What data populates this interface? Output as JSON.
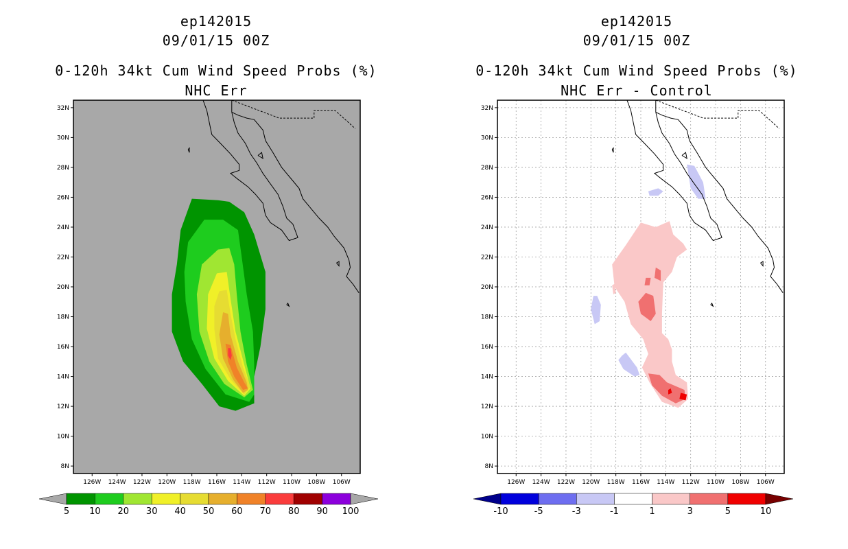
{
  "panels": [
    {
      "storm_id": "ep142015",
      "datetime": "09/01/15 00Z",
      "title": "0-120h 34kt Cum Wind Speed Probs (%)",
      "subtitle": "NHC Err"
    },
    {
      "storm_id": "ep142015",
      "datetime": "09/01/15 00Z",
      "title": "0-120h 34kt Cum Wind Speed Probs (%)",
      "subtitle": "NHC Err - Control"
    }
  ],
  "chart_data": [
    {
      "type": "heatmap",
      "title": "0-120h 34kt Cum Wind Speed Probs (%)",
      "subtitle": "NHC Err",
      "lon_range": [
        -127.5,
        -104.5
      ],
      "lat_range": [
        7.5,
        32.5
      ],
      "lon_ticks": [
        "126W",
        "124W",
        "122W",
        "120W",
        "118W",
        "116W",
        "114W",
        "112W",
        "110W",
        "108W",
        "106W"
      ],
      "lat_ticks": [
        "8N",
        "10N",
        "12N",
        "14N",
        "16N",
        "18N",
        "20N",
        "22N",
        "24N",
        "26N",
        "28N",
        "30N",
        "32N"
      ],
      "grid": false,
      "background_color": "#a8a8a8",
      "colorbar": {
        "levels": [
          "5",
          "10",
          "20",
          "30",
          "40",
          "50",
          "60",
          "70",
          "80",
          "90",
          "100"
        ],
        "colors": [
          "#009400",
          "#1ecc1e",
          "#a0e632",
          "#f0f028",
          "#e6dc32",
          "#e6af2d",
          "#f08228",
          "#fa3c3c",
          "#a00000",
          "#8c00dc"
        ],
        "extend_colors": [
          "#a8a8a8",
          "#a8a8a8"
        ]
      },
      "contours": [
        {
          "level": "5",
          "color": "#009400",
          "points": [
            [
              -118,
              25.9
            ],
            [
              -115.9,
              25.8
            ],
            [
              -115,
              25.7
            ],
            [
              -113.8,
              25
            ],
            [
              -113,
              23.5
            ],
            [
              -112.1,
              21
            ],
            [
              -112.1,
              18.5
            ],
            [
              -112.5,
              16
            ],
            [
              -113,
              14
            ],
            [
              -113,
              12.2
            ],
            [
              -114.5,
              11.7
            ],
            [
              -115.8,
              12
            ],
            [
              -117.2,
              13.5
            ],
            [
              -118.7,
              15
            ],
            [
              -119.6,
              17
            ],
            [
              -119.6,
              19.5
            ],
            [
              -119.2,
              21.5
            ],
            [
              -118.9,
              23.8
            ]
          ]
        },
        {
          "level": "10",
          "color": "#1ecc1e",
          "points": [
            [
              -117,
              24.5
            ],
            [
              -115.5,
              24.5
            ],
            [
              -114.3,
              23.8
            ],
            [
              -114,
              22
            ],
            [
              -113.6,
              19.5
            ],
            [
              -113.1,
              17
            ],
            [
              -113,
              14.8
            ],
            [
              -113,
              12.8
            ],
            [
              -113.4,
              12.3
            ],
            [
              -115.3,
              12.8
            ],
            [
              -116.9,
              14.5
            ],
            [
              -118,
              16.5
            ],
            [
              -118.5,
              19
            ],
            [
              -118.6,
              21
            ],
            [
              -118.3,
              23
            ]
          ]
        },
        {
          "level": "20",
          "color": "#a0e632",
          "points": [
            [
              -115.9,
              22.5
            ],
            [
              -115,
              22.6
            ],
            [
              -114.6,
              21.5
            ],
            [
              -114.4,
              19.5
            ],
            [
              -114.1,
              17
            ],
            [
              -113.6,
              14.8
            ],
            [
              -113.1,
              13.1
            ],
            [
              -113.8,
              12.6
            ],
            [
              -115.4,
              13.5
            ],
            [
              -116.6,
              15
            ],
            [
              -117.4,
              17
            ],
            [
              -117.6,
              19.5
            ],
            [
              -117.2,
              21.5
            ]
          ]
        },
        {
          "level": "30",
          "color": "#f0f028",
          "points": [
            [
              -116,
              20.9
            ],
            [
              -115.2,
              21
            ],
            [
              -114.9,
              19.2
            ],
            [
              -114.5,
              17
            ],
            [
              -113.8,
              14.8
            ],
            [
              -113.3,
              13.2
            ],
            [
              -113.8,
              12.7
            ],
            [
              -115.1,
              13.7
            ],
            [
              -116.2,
              15.2
            ],
            [
              -116.8,
              17.2
            ],
            [
              -116.7,
              19.5
            ]
          ]
        },
        {
          "level": "40",
          "color": "#e6dc32",
          "points": [
            [
              -115.8,
              19.7
            ],
            [
              -115.2,
              19.8
            ],
            [
              -114.9,
              18.2
            ],
            [
              -114.5,
              16.5
            ],
            [
              -113.9,
              14.6
            ],
            [
              -113.3,
              13.3
            ],
            [
              -113.8,
              12.8
            ],
            [
              -114.9,
              13.8
            ],
            [
              -115.9,
              15.2
            ],
            [
              -116.2,
              17.2
            ],
            [
              -116.2,
              18.7
            ]
          ]
        },
        {
          "level": "50",
          "color": "#e6af2d",
          "points": [
            [
              -115.5,
              18.3
            ],
            [
              -115.1,
              18.2
            ],
            [
              -114.9,
              16.8
            ],
            [
              -114.3,
              15
            ],
            [
              -113.6,
              13.6
            ],
            [
              -113.5,
              13.1
            ],
            [
              -113.9,
              12.9
            ],
            [
              -114.7,
              13.8
            ],
            [
              -115.5,
              15.2
            ],
            [
              -115.8,
              16.8
            ]
          ]
        },
        {
          "level": "60",
          "color": "#f08228",
          "points": [
            [
              -115.3,
              16.2
            ],
            [
              -114.9,
              16.1
            ],
            [
              -114.4,
              14.6
            ],
            [
              -113.8,
              13.6
            ],
            [
              -113.5,
              13.2
            ],
            [
              -113.9,
              13.1
            ],
            [
              -114.6,
              14
            ],
            [
              -115.1,
              15
            ]
          ]
        },
        {
          "level": "70",
          "color": "#fa3c3c",
          "points": [
            [
              -115.1,
              15.9
            ],
            [
              -114.9,
              15.9
            ],
            [
              -114.8,
              15.4
            ],
            [
              -114.9,
              15.1
            ],
            [
              -115.1,
              15.4
            ]
          ]
        }
      ]
    },
    {
      "type": "heatmap",
      "title": "0-120h 34kt Cum Wind Speed Probs (%)",
      "subtitle": "NHC Err - Control",
      "lon_range": [
        -127.5,
        -104.5
      ],
      "lat_range": [
        7.5,
        32.5
      ],
      "lon_ticks": [
        "126W",
        "124W",
        "122W",
        "120W",
        "118W",
        "116W",
        "114W",
        "112W",
        "110W",
        "108W",
        "106W"
      ],
      "lat_ticks": [
        "8N",
        "10N",
        "12N",
        "14N",
        "16N",
        "18N",
        "20N",
        "22N",
        "24N",
        "26N",
        "28N",
        "30N",
        "32N"
      ],
      "grid": true,
      "background_color": "#ffffff",
      "colorbar": {
        "levels": [
          "-10",
          "-5",
          "-3",
          "-1",
          "1",
          "3",
          "5",
          "10"
        ],
        "colors": [
          "#0000dc",
          "#6e6ef0",
          "#c8c8f5",
          "#ffffff",
          "#fac8c8",
          "#f07070",
          "#f00000"
        ],
        "extend_colors": [
          "#00008c",
          "#780000"
        ]
      },
      "contours": [
        {
          "level": "1",
          "color": "#fac8c8",
          "points": [
            [
              -116,
              24.3
            ],
            [
              -114.8,
              24
            ],
            [
              -113.7,
              24.4
            ],
            [
              -113.4,
              23.5
            ],
            [
              -112.6,
              22.9
            ],
            [
              -112.3,
              22.5
            ],
            [
              -113.1,
              22
            ],
            [
              -113.5,
              21
            ],
            [
              -114.2,
              20.3
            ],
            [
              -114.3,
              18.2
            ],
            [
              -114.3,
              16.9
            ],
            [
              -113.8,
              16.5
            ],
            [
              -113.5,
              15.8
            ],
            [
              -113.5,
              15
            ],
            [
              -113.2,
              14.1
            ],
            [
              -112.3,
              13.6
            ],
            [
              -112.2,
              12.5
            ],
            [
              -113,
              11.9
            ],
            [
              -114.3,
              12.3
            ],
            [
              -115.3,
              13.6
            ],
            [
              -115.9,
              14.6
            ],
            [
              -115.4,
              15.5
            ],
            [
              -115.8,
              16.5
            ],
            [
              -116.8,
              17.5
            ],
            [
              -117.3,
              19
            ],
            [
              -118.1,
              20
            ],
            [
              -118.3,
              21.5
            ],
            [
              -117.2,
              22.8
            ]
          ]
        },
        {
          "level": "1",
          "color": "#fac8c8",
          "points": [
            [
              -118.3,
              20.1
            ],
            [
              -118.1,
              20.2
            ],
            [
              -118,
              19.6
            ],
            [
              -118.2,
              19.5
            ]
          ]
        },
        {
          "level": "3",
          "color": "#f07070",
          "points": [
            [
              -115.4,
              14.2
            ],
            [
              -114.5,
              14.1
            ],
            [
              -113.9,
              13.6
            ],
            [
              -112.5,
              13.1
            ],
            [
              -112.4,
              12.5
            ],
            [
              -113.2,
              12.2
            ],
            [
              -114.3,
              12.7
            ],
            [
              -115.1,
              13.4
            ]
          ]
        },
        {
          "level": "3",
          "color": "#f07070",
          "points": [
            [
              -115.6,
              19.6
            ],
            [
              -115,
              19.4
            ],
            [
              -114.8,
              18.2
            ],
            [
              -115.2,
              17.7
            ],
            [
              -116,
              18.2
            ],
            [
              -116.2,
              19
            ]
          ]
        },
        {
          "level": "3",
          "color": "#f07070",
          "points": [
            [
              -114.8,
              21.3
            ],
            [
              -114.4,
              21.1
            ],
            [
              -114.4,
              20.4
            ],
            [
              -114.9,
              20.6
            ]
          ]
        },
        {
          "level": "3",
          "color": "#f07070",
          "points": [
            [
              -115.6,
              20.6
            ],
            [
              -115.2,
              20.6
            ],
            [
              -115.3,
              20.1
            ],
            [
              -115.7,
              20.1
            ]
          ]
        },
        {
          "level": "5",
          "color": "#f00000",
          "points": [
            [
              -112.8,
              12.9
            ],
            [
              -112.3,
              12.8
            ],
            [
              -112.4,
              12.4
            ],
            [
              -112.9,
              12.5
            ]
          ]
        },
        {
          "level": "5",
          "color": "#f00000",
          "points": [
            [
              -113.8,
              13.1
            ],
            [
              -113.6,
              13.2
            ],
            [
              -113.5,
              12.9
            ],
            [
              -113.8,
              12.8
            ]
          ]
        },
        {
          "level": "-3",
          "color": "#c8c8f5",
          "points": [
            [
              -117.5,
              15.4
            ],
            [
              -117.2,
              15.6
            ],
            [
              -116.3,
              14.6
            ],
            [
              -116.1,
              14.1
            ],
            [
              -116.5,
              14
            ],
            [
              -117.4,
              14.5
            ],
            [
              -117.8,
              15.1
            ]
          ]
        },
        {
          "level": "-3",
          "color": "#c8c8f5",
          "points": [
            [
              -119.8,
              19.4
            ],
            [
              -119.5,
              19.4
            ],
            [
              -119.2,
              18.8
            ],
            [
              -119.3,
              17.7
            ],
            [
              -119.7,
              17.5
            ],
            [
              -120,
              18.5
            ]
          ]
        },
        {
          "level": "-3",
          "color": "#c8c8f5",
          "points": [
            [
              -112.3,
              28.2
            ],
            [
              -111.7,
              28.1
            ],
            [
              -111,
              27
            ],
            [
              -110.8,
              25.9
            ],
            [
              -111.4,
              25.9
            ],
            [
              -112,
              26.6
            ]
          ]
        },
        {
          "level": "-3",
          "color": "#c8c8f5",
          "points": [
            [
              -115.4,
              26.4
            ],
            [
              -114.6,
              26.6
            ],
            [
              -114.2,
              26.4
            ],
            [
              -114.6,
              26.1
            ],
            [
              -115.3,
              26.1
            ]
          ]
        }
      ]
    }
  ]
}
